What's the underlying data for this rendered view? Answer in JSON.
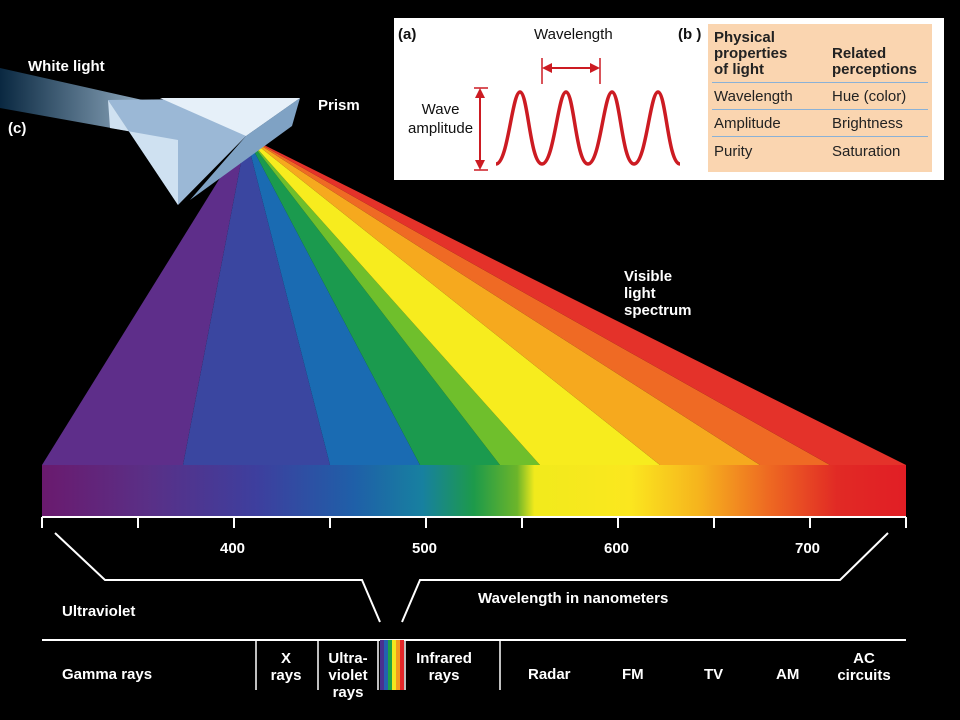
{
  "labels": {
    "white_light": "White light",
    "prism": "Prism",
    "part_c": "(c)",
    "visible_spectrum": [
      "Visible",
      "light",
      "spectrum"
    ],
    "ultraviolet": "Ultraviolet",
    "wavelength_nm": "Wavelength in nanometers"
  },
  "ticks": [
    "400",
    "500",
    "600",
    "700"
  ],
  "em_bands": [
    {
      "text": [
        "Gamma rays"
      ]
    },
    {
      "text": [
        "X",
        "rays"
      ]
    },
    {
      "text": [
        "Ultra-",
        "violet",
        "rays"
      ]
    },
    {
      "text": [
        "Infrared",
        "rays"
      ]
    },
    {
      "text": [
        "Radar"
      ]
    },
    {
      "text": [
        "FM"
      ]
    },
    {
      "text": [
        "TV"
      ]
    },
    {
      "text": [
        "AM"
      ]
    },
    {
      "text": [
        "AC",
        "circuits"
      ]
    }
  ],
  "inset": {
    "part_a": "(a)",
    "part_b": "(b )",
    "wavelength": "Wavelength",
    "amplitude": [
      "Wave",
      "amplitude"
    ],
    "table": {
      "headers": [
        [
          "Physical",
          "properties",
          "of light"
        ],
        [
          "Related",
          "perceptions"
        ]
      ],
      "rows": [
        [
          "Wavelength",
          "Hue (color)"
        ],
        [
          "Amplitude",
          "Brightness"
        ],
        [
          "Purity",
          "Saturation"
        ]
      ]
    }
  },
  "colors": {
    "background": "#000000",
    "inset_bg": "#ffffff",
    "table_bg": "#fad5b0",
    "wave": "#cc1b22",
    "table_rule": "#8ab1d6"
  }
}
